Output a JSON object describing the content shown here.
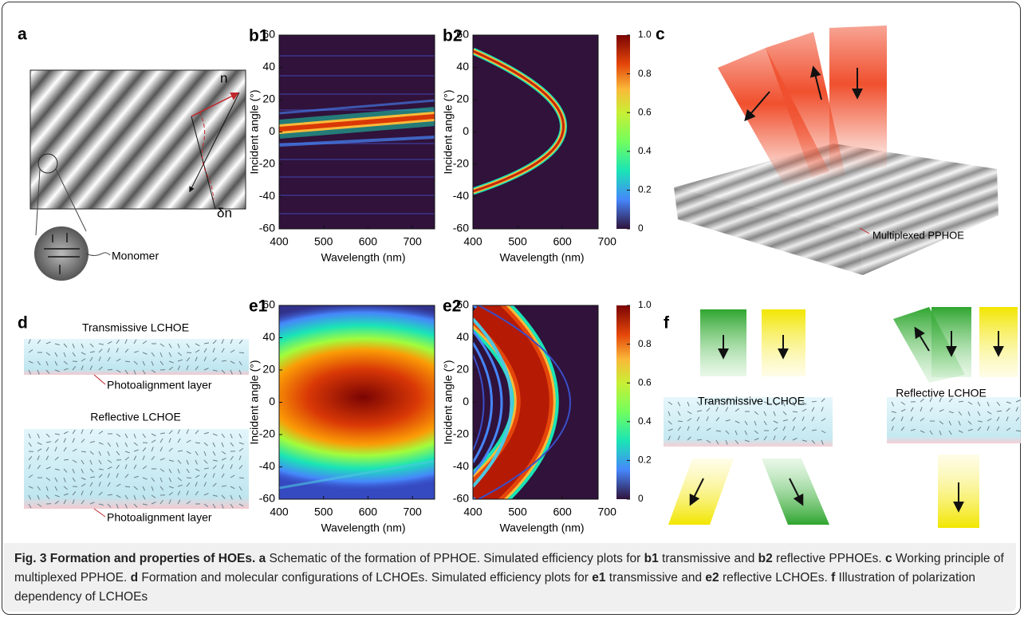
{
  "figure": {
    "a": {
      "label": "a",
      "n_label": "n",
      "dn_label": "δn",
      "monomer_label": "Monomer"
    },
    "b1": {
      "label": "b1",
      "xlabel": "Wavelength (nm)",
      "ylabel": "Incident angle (°)",
      "xlim": [
        400,
        750
      ],
      "ylim": [
        -60,
        60
      ],
      "xticks": [
        400,
        500,
        600,
        700
      ],
      "yticks": [
        -60,
        -40,
        -20,
        0,
        20,
        40,
        60
      ]
    },
    "b2": {
      "label": "b2",
      "xlabel": "Wavelength (nm)",
      "ylabel": "Incident angle (°)",
      "xlim": [
        400,
        680
      ],
      "ylim": [
        -60,
        60
      ],
      "xticks": [
        400,
        500,
        600,
        700
      ],
      "yticks": [
        -60,
        -40,
        -20,
        0,
        20,
        40,
        60
      ],
      "colorbar": {
        "lim": [
          0,
          1
        ],
        "ticks": [
          0,
          0.2,
          0.4,
          0.6,
          0.8,
          {
            "value": 1,
            "label": "1.0"
          }
        ]
      }
    },
    "c": {
      "label": "c",
      "note": "Multiplexed PPHOE"
    },
    "d": {
      "label": "d",
      "top_title": "Transmissive LCHOE",
      "top_note": "Photoalignment layer",
      "bottom_title": "Reflective LCHOE",
      "bottom_note": "Photoalignment layer"
    },
    "e1": {
      "label": "e1",
      "xlabel": "Wavelength (nm)",
      "ylabel": "Incident angle (°)",
      "xlim": [
        400,
        750
      ],
      "ylim": [
        -60,
        60
      ],
      "xticks": [
        400,
        500,
        600,
        700
      ],
      "yticks": [
        -60,
        -40,
        -20,
        0,
        20,
        40,
        60
      ]
    },
    "e2": {
      "label": "e2",
      "xlabel": "Wavelength (nm)",
      "ylabel": "Incident angle (°)",
      "xlim": [
        400,
        680
      ],
      "ylim": [
        -60,
        60
      ],
      "xticks": [
        400,
        500,
        600,
        700
      ],
      "yticks": [
        -60,
        -40,
        -20,
        0,
        20,
        40,
        60
      ],
      "colorbar": {
        "lim": [
          0,
          1
        ],
        "ticks": [
          0,
          0.2,
          0.4,
          0.6,
          0.8,
          {
            "value": 1,
            "label": "1.0"
          }
        ]
      }
    },
    "f": {
      "label": "f",
      "left_title": "Transmissive LCHOE",
      "right_title": "Reflective LCHOE"
    }
  },
  "caption": [
    {
      "bold": "Fig. 3 Formation and properties of HOEs. a"
    },
    {
      "text": " Schematic of the formation of PPHOE. Simulated efficiency plots for "
    },
    {
      "bold": "b1"
    },
    {
      "text": " transmissive and "
    },
    {
      "bold": "b2"
    },
    {
      "text": " reflective PPHOEs. "
    },
    {
      "bold": "c"
    },
    {
      "text": " Working principle of multiplexed PPHOE. "
    },
    {
      "bold": "d"
    },
    {
      "text": " Formation and molecular configurations of LCHOEs. Simulated efficiency plots for "
    },
    {
      "bold": "e1"
    },
    {
      "text": " transmissive and "
    },
    {
      "bold": "e2"
    },
    {
      "text": " reflective LCHOEs. "
    },
    {
      "bold": "f"
    },
    {
      "text": " Illustration of polarization dependency of LCHOEs"
    }
  ]
}
